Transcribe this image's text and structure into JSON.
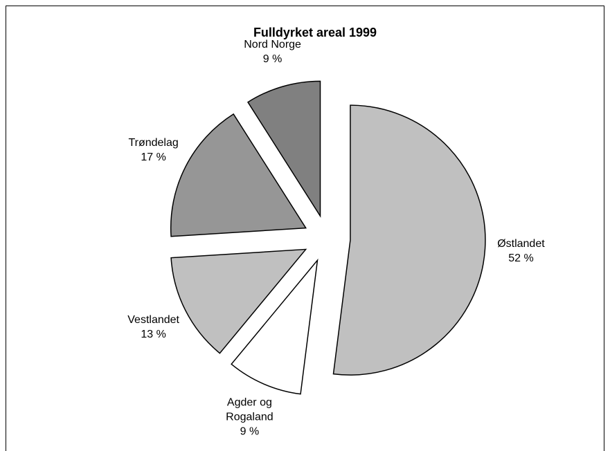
{
  "chart_data": {
    "type": "pie",
    "title": "Fulldyrket areal 1999",
    "categories": [
      "Østlandet",
      "Agder og Rogaland",
      "Vestlandet",
      "Trøndelag",
      "Nord Norge"
    ],
    "values": [
      52,
      9,
      13,
      17,
      9
    ],
    "value_labels": [
      "52 %",
      "9 %",
      "13 %",
      "17 %",
      "9 %"
    ],
    "colors": [
      "#c0c0c0",
      "#ffffff",
      "#c0c0c0",
      "#969696",
      "#808080"
    ]
  }
}
